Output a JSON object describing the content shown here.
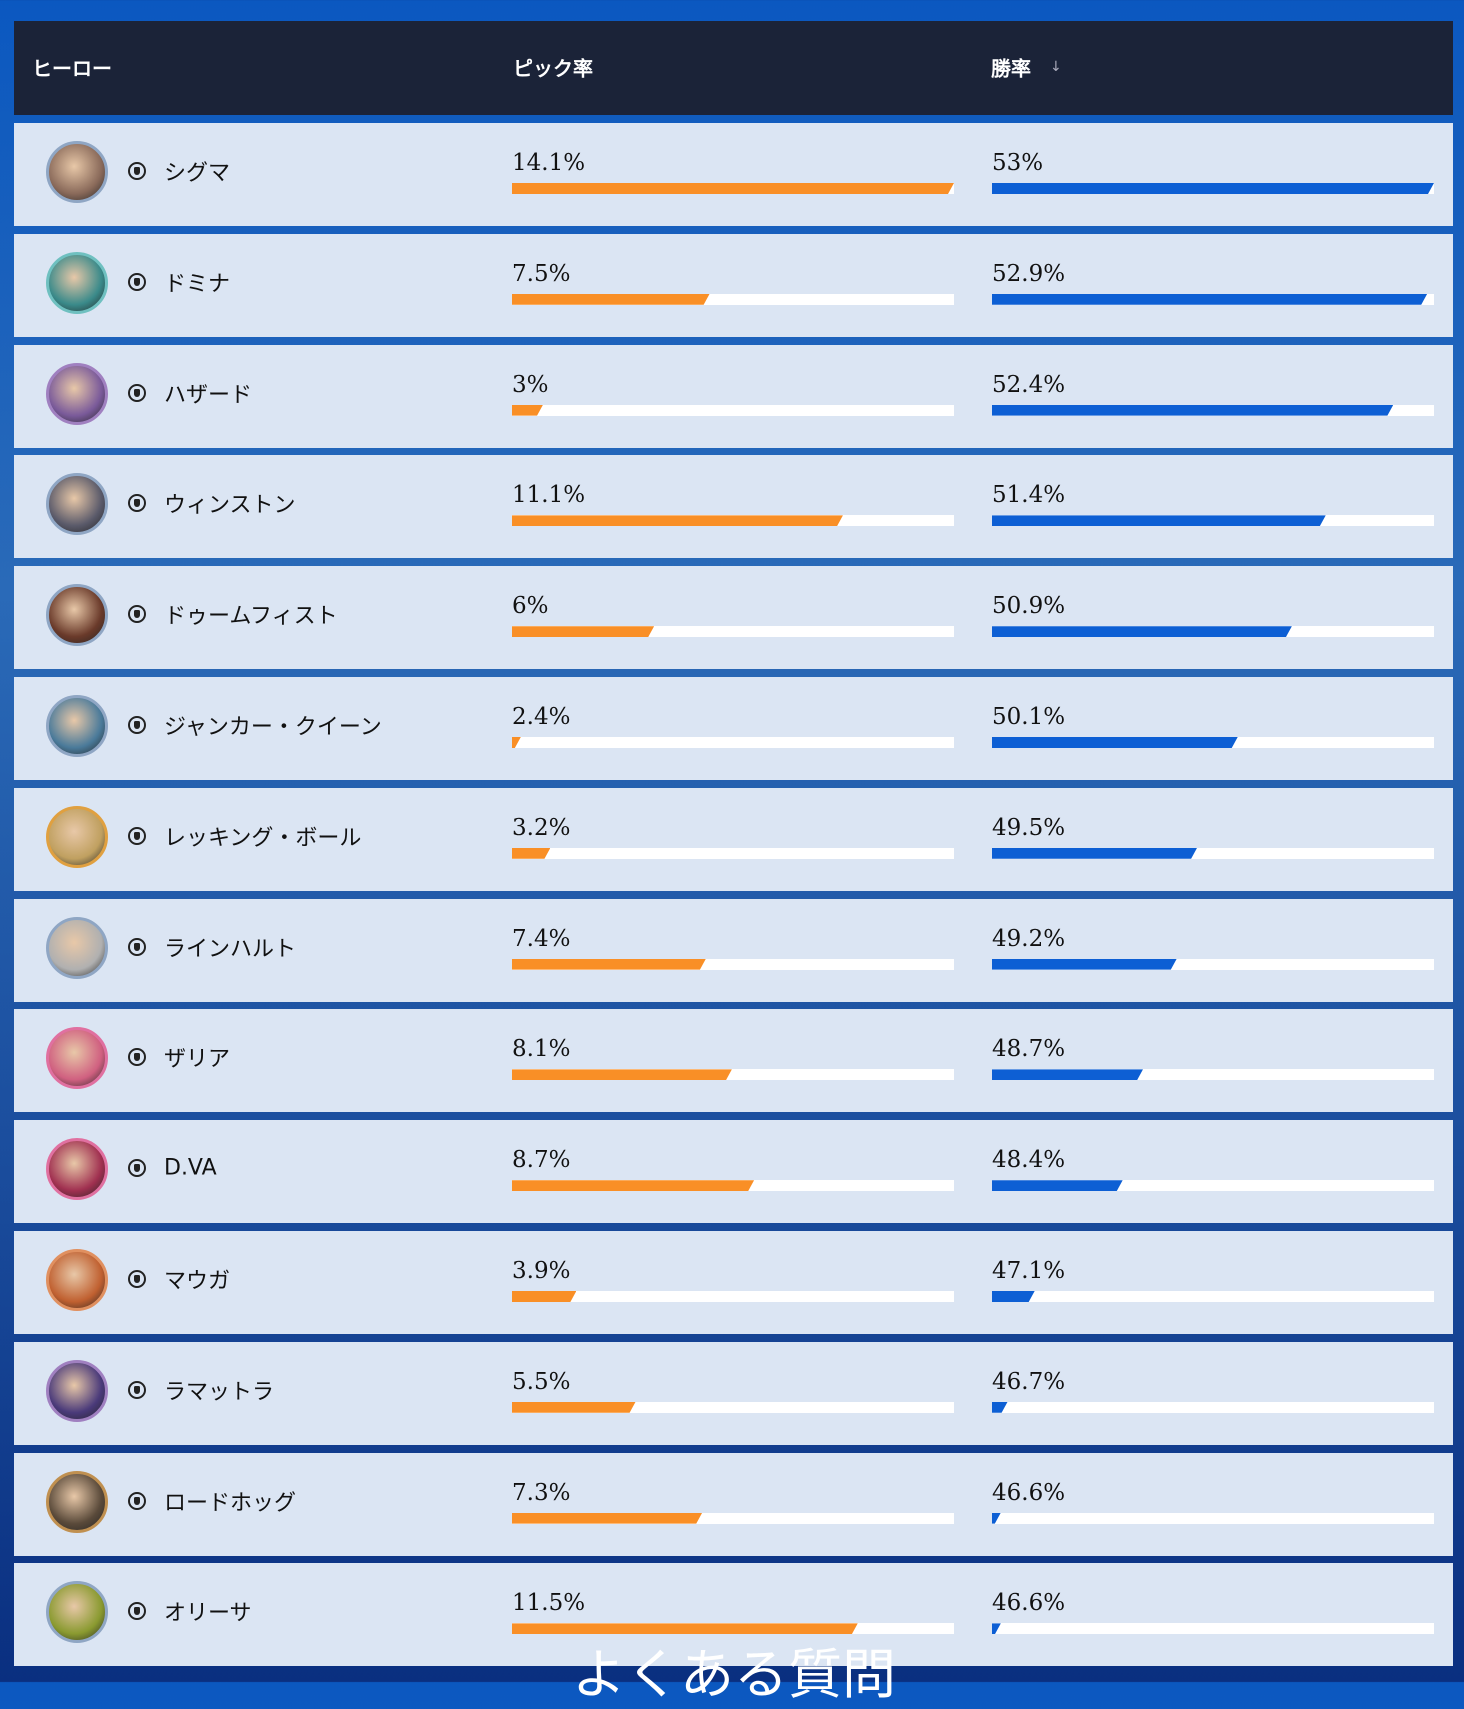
{
  "header": {
    "hero": "ヒーロー",
    "pick_rate": "ピック率",
    "win_rate": "勝率",
    "sort_icon": "↓"
  },
  "rows": [
    {
      "hero": "シグマ",
      "pick_rate": {
        "value": 14.1,
        "label": "14.1%"
      },
      "win_rate": {
        "value": 53,
        "label": "53%"
      }
    },
    {
      "hero": "ドミナ",
      "pick_rate": {
        "value": 7.5,
        "label": "7.5%"
      },
      "win_rate": {
        "value": 52.9,
        "label": "52.9%"
      }
    },
    {
      "hero": "ハザード",
      "pick_rate": {
        "value": 3,
        "label": "3%"
      },
      "win_rate": {
        "value": 52.4,
        "label": "52.4%"
      }
    },
    {
      "hero": "ウィンストン",
      "pick_rate": {
        "value": 11.1,
        "label": "11.1%"
      },
      "win_rate": {
        "value": 51.4,
        "label": "51.4%"
      }
    },
    {
      "hero": "ドゥームフィスト",
      "pick_rate": {
        "value": 6,
        "label": "6%"
      },
      "win_rate": {
        "value": 50.9,
        "label": "50.9%"
      }
    },
    {
      "hero": "ジャンカー・クイーン",
      "pick_rate": {
        "value": 2.4,
        "label": "2.4%"
      },
      "win_rate": {
        "value": 50.1,
        "label": "50.1%"
      }
    },
    {
      "hero": "レッキング・ボール",
      "pick_rate": {
        "value": 3.2,
        "label": "3.2%"
      },
      "win_rate": {
        "value": 49.5,
        "label": "49.5%"
      }
    },
    {
      "hero": "ラインハルト",
      "pick_rate": {
        "value": 7.4,
        "label": "7.4%"
      },
      "win_rate": {
        "value": 49.2,
        "label": "49.2%"
      }
    },
    {
      "hero": "ザリア",
      "pick_rate": {
        "value": 8.1,
        "label": "8.1%"
      },
      "win_rate": {
        "value": 48.7,
        "label": "48.7%"
      }
    },
    {
      "hero": "D.VA",
      "pick_rate": {
        "value": 8.7,
        "label": "8.7%"
      },
      "win_rate": {
        "value": 48.4,
        "label": "48.4%"
      }
    },
    {
      "hero": "マウガ",
      "pick_rate": {
        "value": 3.9,
        "label": "3.9%"
      },
      "win_rate": {
        "value": 47.1,
        "label": "47.1%"
      }
    },
    {
      "hero": "ラマットラ",
      "pick_rate": {
        "value": 5.5,
        "label": "5.5%"
      },
      "win_rate": {
        "value": 46.7,
        "label": "46.7%"
      }
    },
    {
      "hero": "ロードホッグ",
      "pick_rate": {
        "value": 7.3,
        "label": "7.3%"
      },
      "win_rate": {
        "value": 46.6,
        "label": "46.6%"
      }
    },
    {
      "hero": "オリーサ",
      "pick_rate": {
        "value": 11.5,
        "label": "11.5%"
      },
      "win_rate": {
        "value": 46.6,
        "label": "46.6%"
      }
    }
  ],
  "faq_heading": "よくある質問"
}
